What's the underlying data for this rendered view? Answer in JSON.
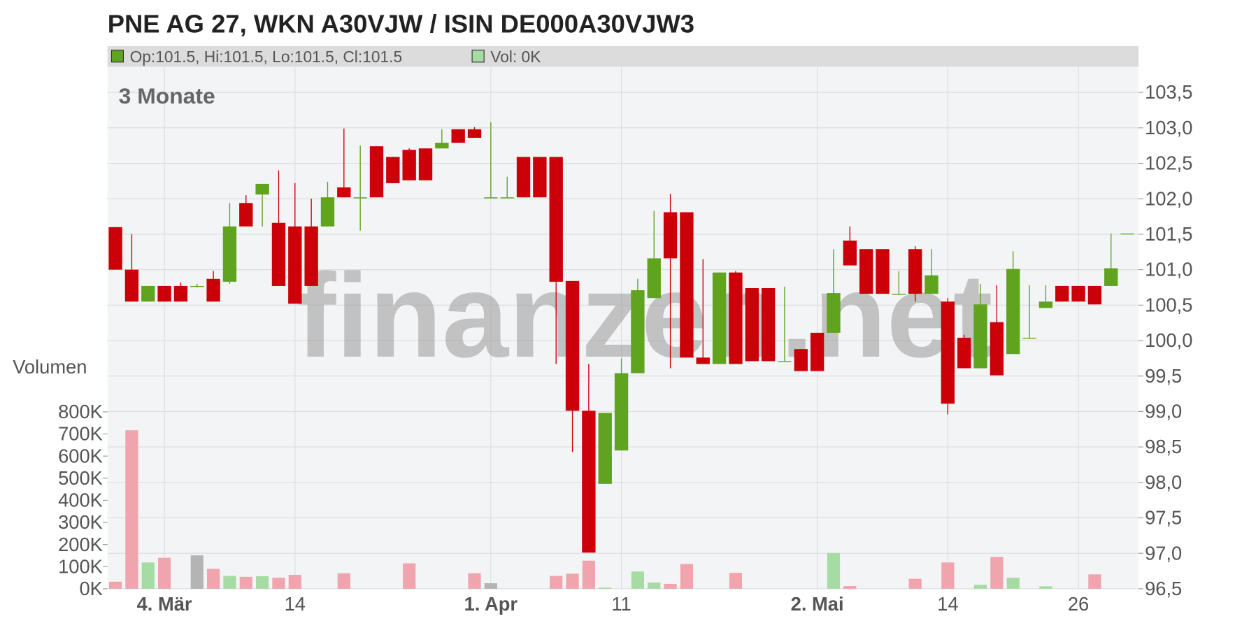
{
  "chart_data": {
    "type": "candlestick",
    "title": "PNE AG 27, WKN A30VJW / ISIN DE000A30VJW3",
    "info": "Op:101.5, Hi:101.5, Lo:101.5, Cl:101.5",
    "volume_info": "Vol: 0K",
    "period": "3 Monate",
    "volume_label": "Volumen",
    "watermark": "finanzen.net",
    "up_color": "#5fa31f",
    "down_color": "#cc0008",
    "volume_up_color": "#a6dba4",
    "volume_down_color": "#f0a4ae",
    "volume_flat_color": "#b4b4b4",
    "grid": true,
    "categories": [
      null,
      null,
      null,
      "4. Mär",
      null,
      null,
      null,
      null,
      null,
      null,
      null,
      "14",
      null,
      null,
      null,
      null,
      null,
      null,
      null,
      null,
      null,
      null,
      null,
      "1. Apr",
      null,
      null,
      null,
      null,
      null,
      null,
      null,
      "11",
      null,
      null,
      null,
      null,
      null,
      null,
      null,
      null,
      null,
      null,
      null,
      "2. Mai",
      null,
      null,
      null,
      null,
      null,
      null,
      null,
      "14",
      null,
      null,
      null,
      null,
      null,
      null,
      null,
      "26",
      null,
      null,
      null
    ],
    "open": [
      101.6,
      101.0,
      100.55,
      100.77,
      100.77,
      100.77,
      100.87,
      100.83,
      101.94,
      102.06,
      101.66,
      101.61,
      101.61,
      101.61,
      102.16,
      102.02,
      102.74,
      102.59,
      102.69,
      102.71,
      102.71,
      102.98,
      102.98,
      102.02,
      102.02,
      102.59,
      102.59,
      102.59,
      100.84,
      99.01,
      97.98,
      98.45,
      99.54,
      100.6,
      101.81,
      101.81,
      99.76,
      99.67,
      100.96,
      100.74,
      100.74,
      99.71,
      99.88,
      100.11,
      100.11,
      101.41,
      101.29,
      101.29,
      100.66,
      101.29,
      100.66,
      100.55,
      100.04,
      99.61,
      100.26,
      99.81,
      100.04,
      100.46,
      100.77,
      100.77,
      100.77,
      100.77,
      101.51
    ],
    "high": [
      101.6,
      101.5,
      100.77,
      100.77,
      100.82,
      100.8,
      100.98,
      101.94,
      102.05,
      102.21,
      102.4,
      102.22,
      102.0,
      102.24,
      102.99,
      102.75,
      102.74,
      102.59,
      102.71,
      102.71,
      102.98,
      102.98,
      103.01,
      103.08,
      102.31,
      102.59,
      102.59,
      102.59,
      100.84,
      99.67,
      98.98,
      99.75,
      100.87,
      101.83,
      102.07,
      101.81,
      101.15,
      100.96,
      100.98,
      100.74,
      100.74,
      100.76,
      99.88,
      100.11,
      101.29,
      101.61,
      101.29,
      101.29,
      100.98,
      101.33,
      101.29,
      100.6,
      100.08,
      100.8,
      100.78,
      101.26,
      100.78,
      100.78,
      100.77,
      100.77,
      100.77,
      101.51,
      101.51
    ],
    "low": [
      101.0,
      100.55,
      100.55,
      100.55,
      100.55,
      100.75,
      100.55,
      100.8,
      101.61,
      101.61,
      100.77,
      100.52,
      100.77,
      101.61,
      102.02,
      101.55,
      102.02,
      102.22,
      102.26,
      102.26,
      102.71,
      102.79,
      102.86,
      102.02,
      102.02,
      102.02,
      102.02,
      99.67,
      98.43,
      97.01,
      97.98,
      98.45,
      99.54,
      100.6,
      99.61,
      99.76,
      99.67,
      99.67,
      99.67,
      99.71,
      99.71,
      99.71,
      99.57,
      99.57,
      100.11,
      101.06,
      100.66,
      100.66,
      100.66,
      100.55,
      100.66,
      98.96,
      99.61,
      99.61,
      99.51,
      99.81,
      100.04,
      100.46,
      100.55,
      100.55,
      100.51,
      100.77,
      101.51
    ],
    "close": [
      101.0,
      100.55,
      100.77,
      100.55,
      100.55,
      100.77,
      100.55,
      101.61,
      101.61,
      102.21,
      100.77,
      100.52,
      100.77,
      102.02,
      102.02,
      102.02,
      102.02,
      102.22,
      102.26,
      102.26,
      102.79,
      102.79,
      102.86,
      102.02,
      102.02,
      102.02,
      102.02,
      100.83,
      99.01,
      97.01,
      98.98,
      99.54,
      100.71,
      101.16,
      101.16,
      99.76,
      99.67,
      100.96,
      99.67,
      99.71,
      99.71,
      99.71,
      99.57,
      99.57,
      100.67,
      101.06,
      100.66,
      100.66,
      100.66,
      100.66,
      100.92,
      99.11,
      99.61,
      100.51,
      99.51,
      101.01,
      100.04,
      100.55,
      100.55,
      100.55,
      100.51,
      101.02,
      101.51
    ],
    "volume": [
      32000,
      717000,
      119000,
      140000,
      0,
      151000,
      90000,
      58000,
      54000,
      57000,
      50000,
      63000,
      0,
      0,
      70000,
      0,
      0,
      0,
      115000,
      0,
      0,
      0,
      70000,
      25000,
      0,
      0,
      0,
      58000,
      68000,
      127000,
      5000,
      0,
      78000,
      28000,
      22000,
      112000,
      0,
      0,
      72000,
      0,
      0,
      0,
      0,
      0,
      162000,
      12000,
      0,
      0,
      0,
      45000,
      0,
      119000,
      0,
      18000,
      144000,
      50000,
      0,
      11000,
      0,
      0,
      65000,
      0,
      0
    ],
    "ylim": [
      96.5,
      103.86
    ],
    "yticks": [
      {
        "value": 96.5,
        "label": "96,5"
      },
      {
        "value": 97.0,
        "label": "97,0"
      },
      {
        "value": 97.5,
        "label": "97,5"
      },
      {
        "value": 98.0,
        "label": "98,0"
      },
      {
        "value": 98.5,
        "label": "98,5"
      },
      {
        "value": 99.0,
        "label": "99,0"
      },
      {
        "value": 99.5,
        "label": "99,5"
      },
      {
        "value": 100.0,
        "label": "100,0"
      },
      {
        "value": 100.5,
        "label": "100,5"
      },
      {
        "value": 101.0,
        "label": "101,0"
      },
      {
        "value": 101.5,
        "label": "101,5"
      },
      {
        "value": 102.0,
        "label": "102,0"
      },
      {
        "value": 102.5,
        "label": "102,5"
      },
      {
        "value": 103.0,
        "label": "103,0"
      },
      {
        "value": 103.5,
        "label": "103,5"
      }
    ],
    "y2lim": [
      0,
      2360000
    ],
    "y2ticks": [
      {
        "value": 0,
        "label": "0K"
      },
      {
        "value": 100000,
        "label": "100K"
      },
      {
        "value": 200000,
        "label": "200K"
      },
      {
        "value": 300000,
        "label": "300K"
      },
      {
        "value": 400000,
        "label": "400K"
      },
      {
        "value": 500000,
        "label": "500K"
      },
      {
        "value": 600000,
        "label": "600K"
      },
      {
        "value": 700000,
        "label": "700K"
      },
      {
        "value": 800000,
        "label": "800K"
      }
    ]
  }
}
